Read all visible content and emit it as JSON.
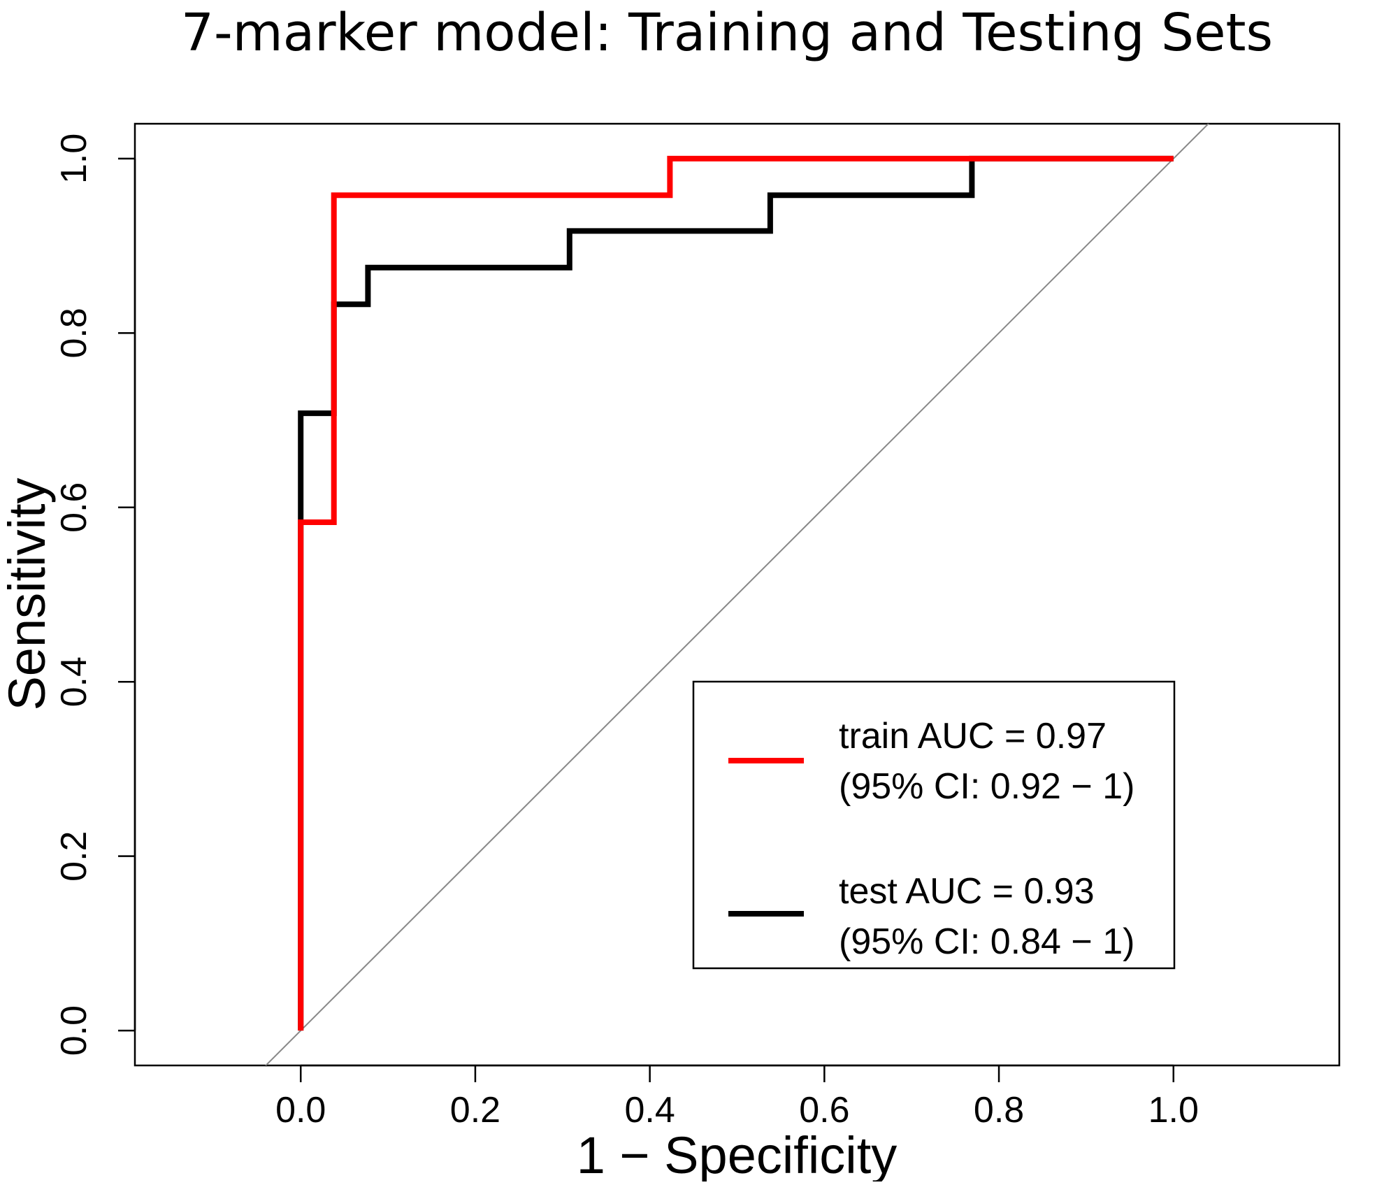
{
  "chart_data": {
    "type": "line",
    "title": "7-marker model: Training and Testing Sets",
    "xlabel": "1 − Specificity",
    "ylabel": "Sensitivity",
    "xlim": [
      -0.19,
      1.19
    ],
    "ylim": [
      -0.04,
      1.04
    ],
    "xticks": [
      0.0,
      0.2,
      0.4,
      0.6,
      0.8,
      1.0
    ],
    "xtick_labels": [
      "0.0",
      "0.2",
      "0.4",
      "0.6",
      "0.8",
      "1.0"
    ],
    "yticks": [
      0.0,
      0.2,
      0.4,
      0.6,
      0.8,
      1.0
    ],
    "ytick_labels": [
      "0.0",
      "0.2",
      "0.4",
      "0.6",
      "0.8",
      "1.0"
    ],
    "grid": false,
    "legend_position": "bottom-right",
    "reference_line": {
      "slope": 1,
      "intercept": 0,
      "color": "#888888"
    },
    "series": [
      {
        "name": "train",
        "legend_lines": [
          "train AUC = 0.97",
          "(95% CI: 0.92 − 1)"
        ],
        "color": "#ff0000",
        "x": [
          0.0,
          0.0,
          0.038,
          0.038,
          0.423,
          0.423,
          1.0
        ],
        "y": [
          0.0,
          0.583,
          0.583,
          0.958,
          0.958,
          1.0,
          1.0
        ]
      },
      {
        "name": "test",
        "legend_lines": [
          "test AUC = 0.93",
          "(95% CI: 0.84 − 1)"
        ],
        "color": "#000000",
        "x": [
          0.0,
          0.0,
          0.0,
          0.038,
          0.038,
          0.077,
          0.077,
          0.308,
          0.308,
          0.538,
          0.538,
          0.769,
          0.769,
          1.0
        ],
        "y": [
          0.0,
          0.583,
          0.708,
          0.708,
          0.833,
          0.833,
          0.875,
          0.875,
          0.917,
          0.917,
          0.958,
          0.958,
          1.0,
          1.0
        ]
      }
    ]
  }
}
